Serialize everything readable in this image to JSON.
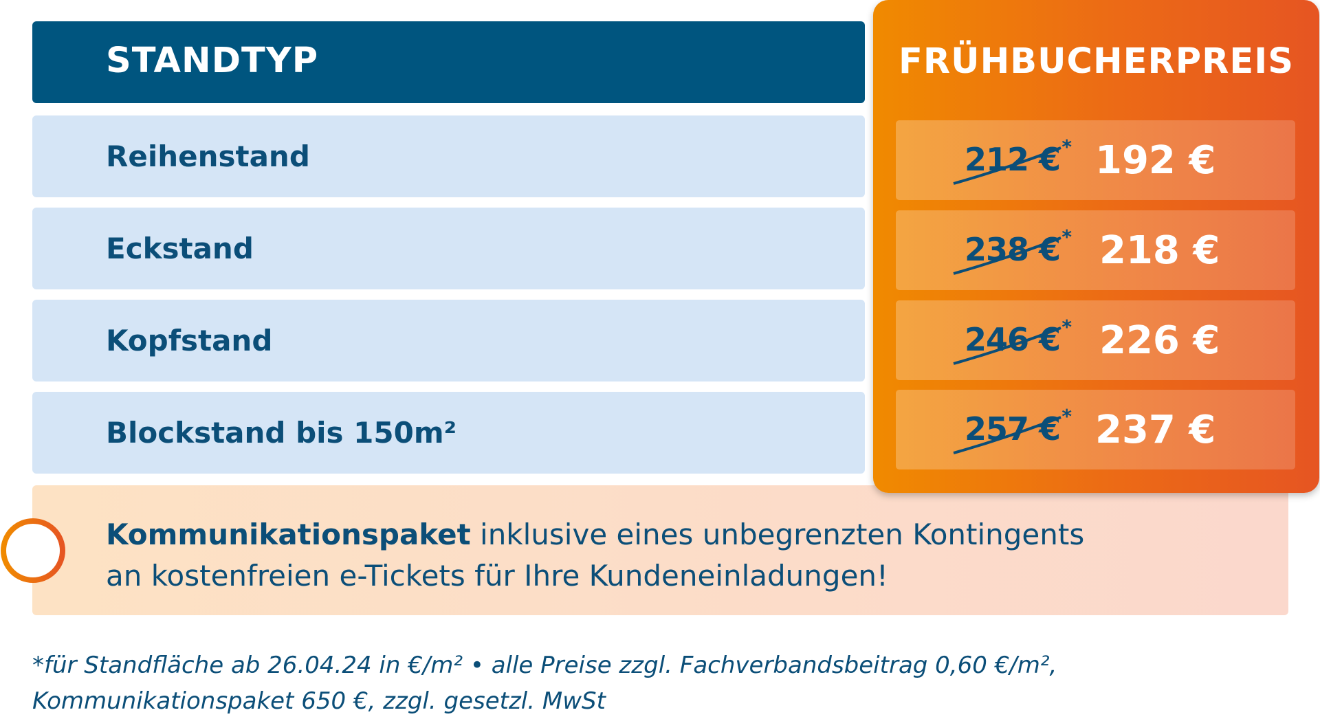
{
  "colors": {
    "header_blue": "#00557f",
    "row_blue": "#d5e5f6",
    "text_blue": "#0b4e78",
    "orange_start": "#f08a00",
    "orange_end": "#e65522"
  },
  "header": {
    "left_title": "STANDTYP",
    "right_title": "FRÜHBUCHERPREIS"
  },
  "rows": [
    {
      "type": "Reihenstand",
      "old_price": "212 €",
      "asterisk": "*",
      "new_price": "192 €"
    },
    {
      "type": "Eckstand",
      "old_price": "238 €",
      "asterisk": "*",
      "new_price": "218 €"
    },
    {
      "type": "Kopfstand",
      "old_price": "246 €",
      "asterisk": "*",
      "new_price": "226 €"
    },
    {
      "type": "Blockstand bis 150m²",
      "old_price": "257 €",
      "asterisk": "*",
      "new_price": "237 €"
    }
  ],
  "banner": {
    "icon": "plus-circle-icon",
    "bold_text": "Kommunikationspaket",
    "line1_rest": " inklusive eines unbegrenzten Kontingents",
    "line2": "an kostenfreien e-Tickets für Ihre Kundeneinladungen!"
  },
  "footnote": {
    "line1": "*für Standfläche ab 26.04.24 in €/m²  •  alle Preise zzgl. Fachverbandsbeitrag 0,60 €/m²,",
    "line2": "Kommunikationspaket 650 €, zzgl. gesetzl. MwSt"
  }
}
